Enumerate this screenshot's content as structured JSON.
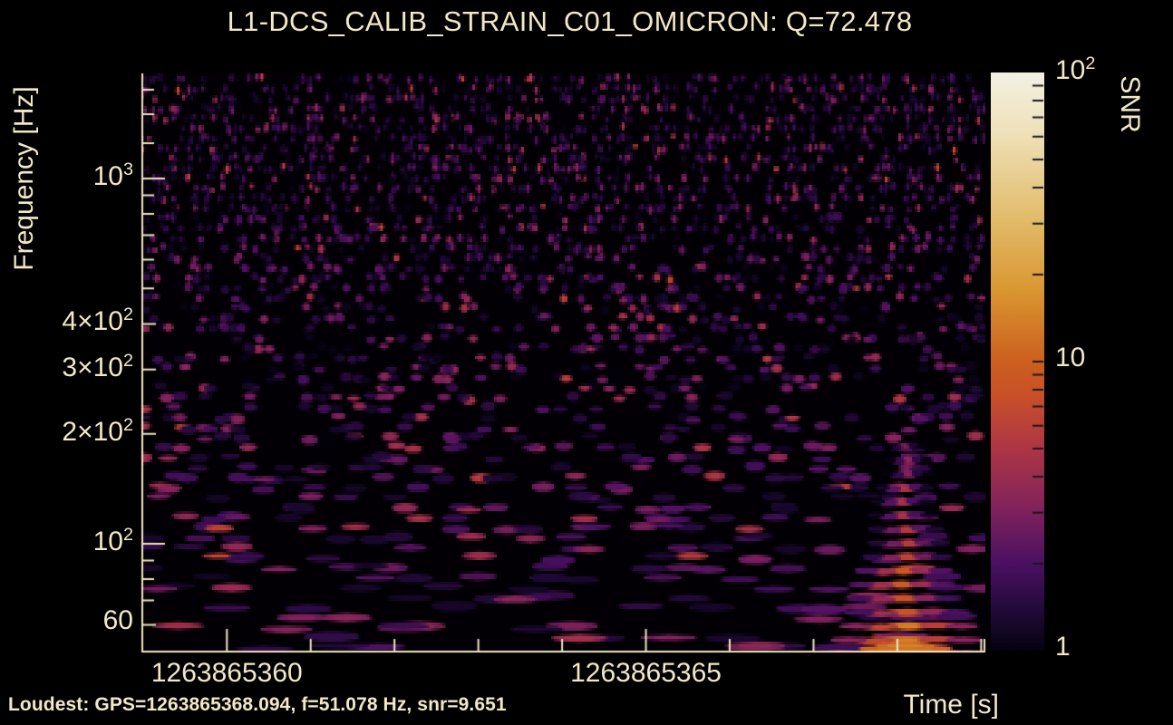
{
  "title": "L1-DCS_CALIB_STRAIN_C01_OMICRON: Q=72.478",
  "footer": {
    "loudest": "Loudest: GPS=1263865368.094, f=51.078 Hz, snr=9.651"
  },
  "colors": {
    "background": "#000000",
    "text": "#f1e8c6",
    "frame": "#f0e7c3",
    "colorbar_tick": "#181818"
  },
  "chart_data": {
    "type": "heatmap",
    "subtype": "omicron-q-scan-spectrogram",
    "title": "L1-DCS_CALIB_STRAIN_C01_OMICRON: Q=72.478",
    "q_value": 72.478,
    "xlabel": "Time [s]",
    "ylabel": "Frequency [Hz]",
    "colorbar_label": "SNR",
    "x_range": [
      1263865358.98,
      1263865369.05
    ],
    "y_range_hz": [
      50.4,
      1940
    ],
    "y_scale": "log",
    "snr_range": [
      1,
      100
    ],
    "snr_scale": "log",
    "loudest": {
      "gps": 1263865368.094,
      "f_hz": 51.078,
      "snr": 9.651
    },
    "x_major_ticks": [
      {
        "t": 1263865360,
        "label": "1263865360"
      },
      {
        "t": 1263865365,
        "label": "1263865365"
      }
    ],
    "x_minor_ticks": [
      1263865361,
      1263865362,
      1263865363,
      1263865364,
      1263865366,
      1263865367,
      1263865368,
      1263865369
    ],
    "y_ticks": [
      {
        "f": 1000,
        "base": "10",
        "exp": "3",
        "major": true
      },
      {
        "f": 400,
        "base": "4×10",
        "exp": "2",
        "major": false
      },
      {
        "f": 300,
        "base": "3×10",
        "exp": "2",
        "major": false
      },
      {
        "f": 200,
        "base": "2×10",
        "exp": "2",
        "major": false
      },
      {
        "f": 100,
        "base": "10",
        "exp": "2",
        "major": true
      },
      {
        "f": 60,
        "base": "60",
        "exp": "",
        "major": false
      }
    ],
    "y_minor_ticks": [
      70,
      80,
      90,
      500,
      600,
      700,
      800,
      900,
      1250,
      1500,
      1750
    ],
    "colorbar_ticks": [
      {
        "snr": 100,
        "base": "10",
        "exp": "2"
      },
      {
        "snr": 10,
        "base": "10",
        "exp": ""
      },
      {
        "snr": 1,
        "base": "1",
        "exp": ""
      }
    ],
    "colorbar_minor_ticks": [
      2,
      3,
      4,
      5,
      6,
      7,
      8,
      9,
      20,
      30,
      40,
      50,
      60,
      70,
      80,
      90
    ],
    "colormap_stops": [
      [
        0.0,
        "#060210"
      ],
      [
        0.06,
        "#1d0934"
      ],
      [
        0.15,
        "#4a1062"
      ],
      [
        0.25,
        "#83235b"
      ],
      [
        0.35,
        "#ad3545"
      ],
      [
        0.44,
        "#c84f28"
      ],
      [
        0.5,
        "#cc5f1f"
      ],
      [
        0.62,
        "#d9952f"
      ],
      [
        0.75,
        "#e2bc6c"
      ],
      [
        0.9,
        "#efe2bb"
      ],
      [
        1.0,
        "#f3f0e2"
      ]
    ],
    "noise_texture": {
      "seed": 20,
      "coverage": 0.46,
      "snr_typical_range": [
        1,
        5
      ],
      "description": "random Q-transform tile noise; tiles narrow at high frequency, wide at low frequency"
    }
  }
}
